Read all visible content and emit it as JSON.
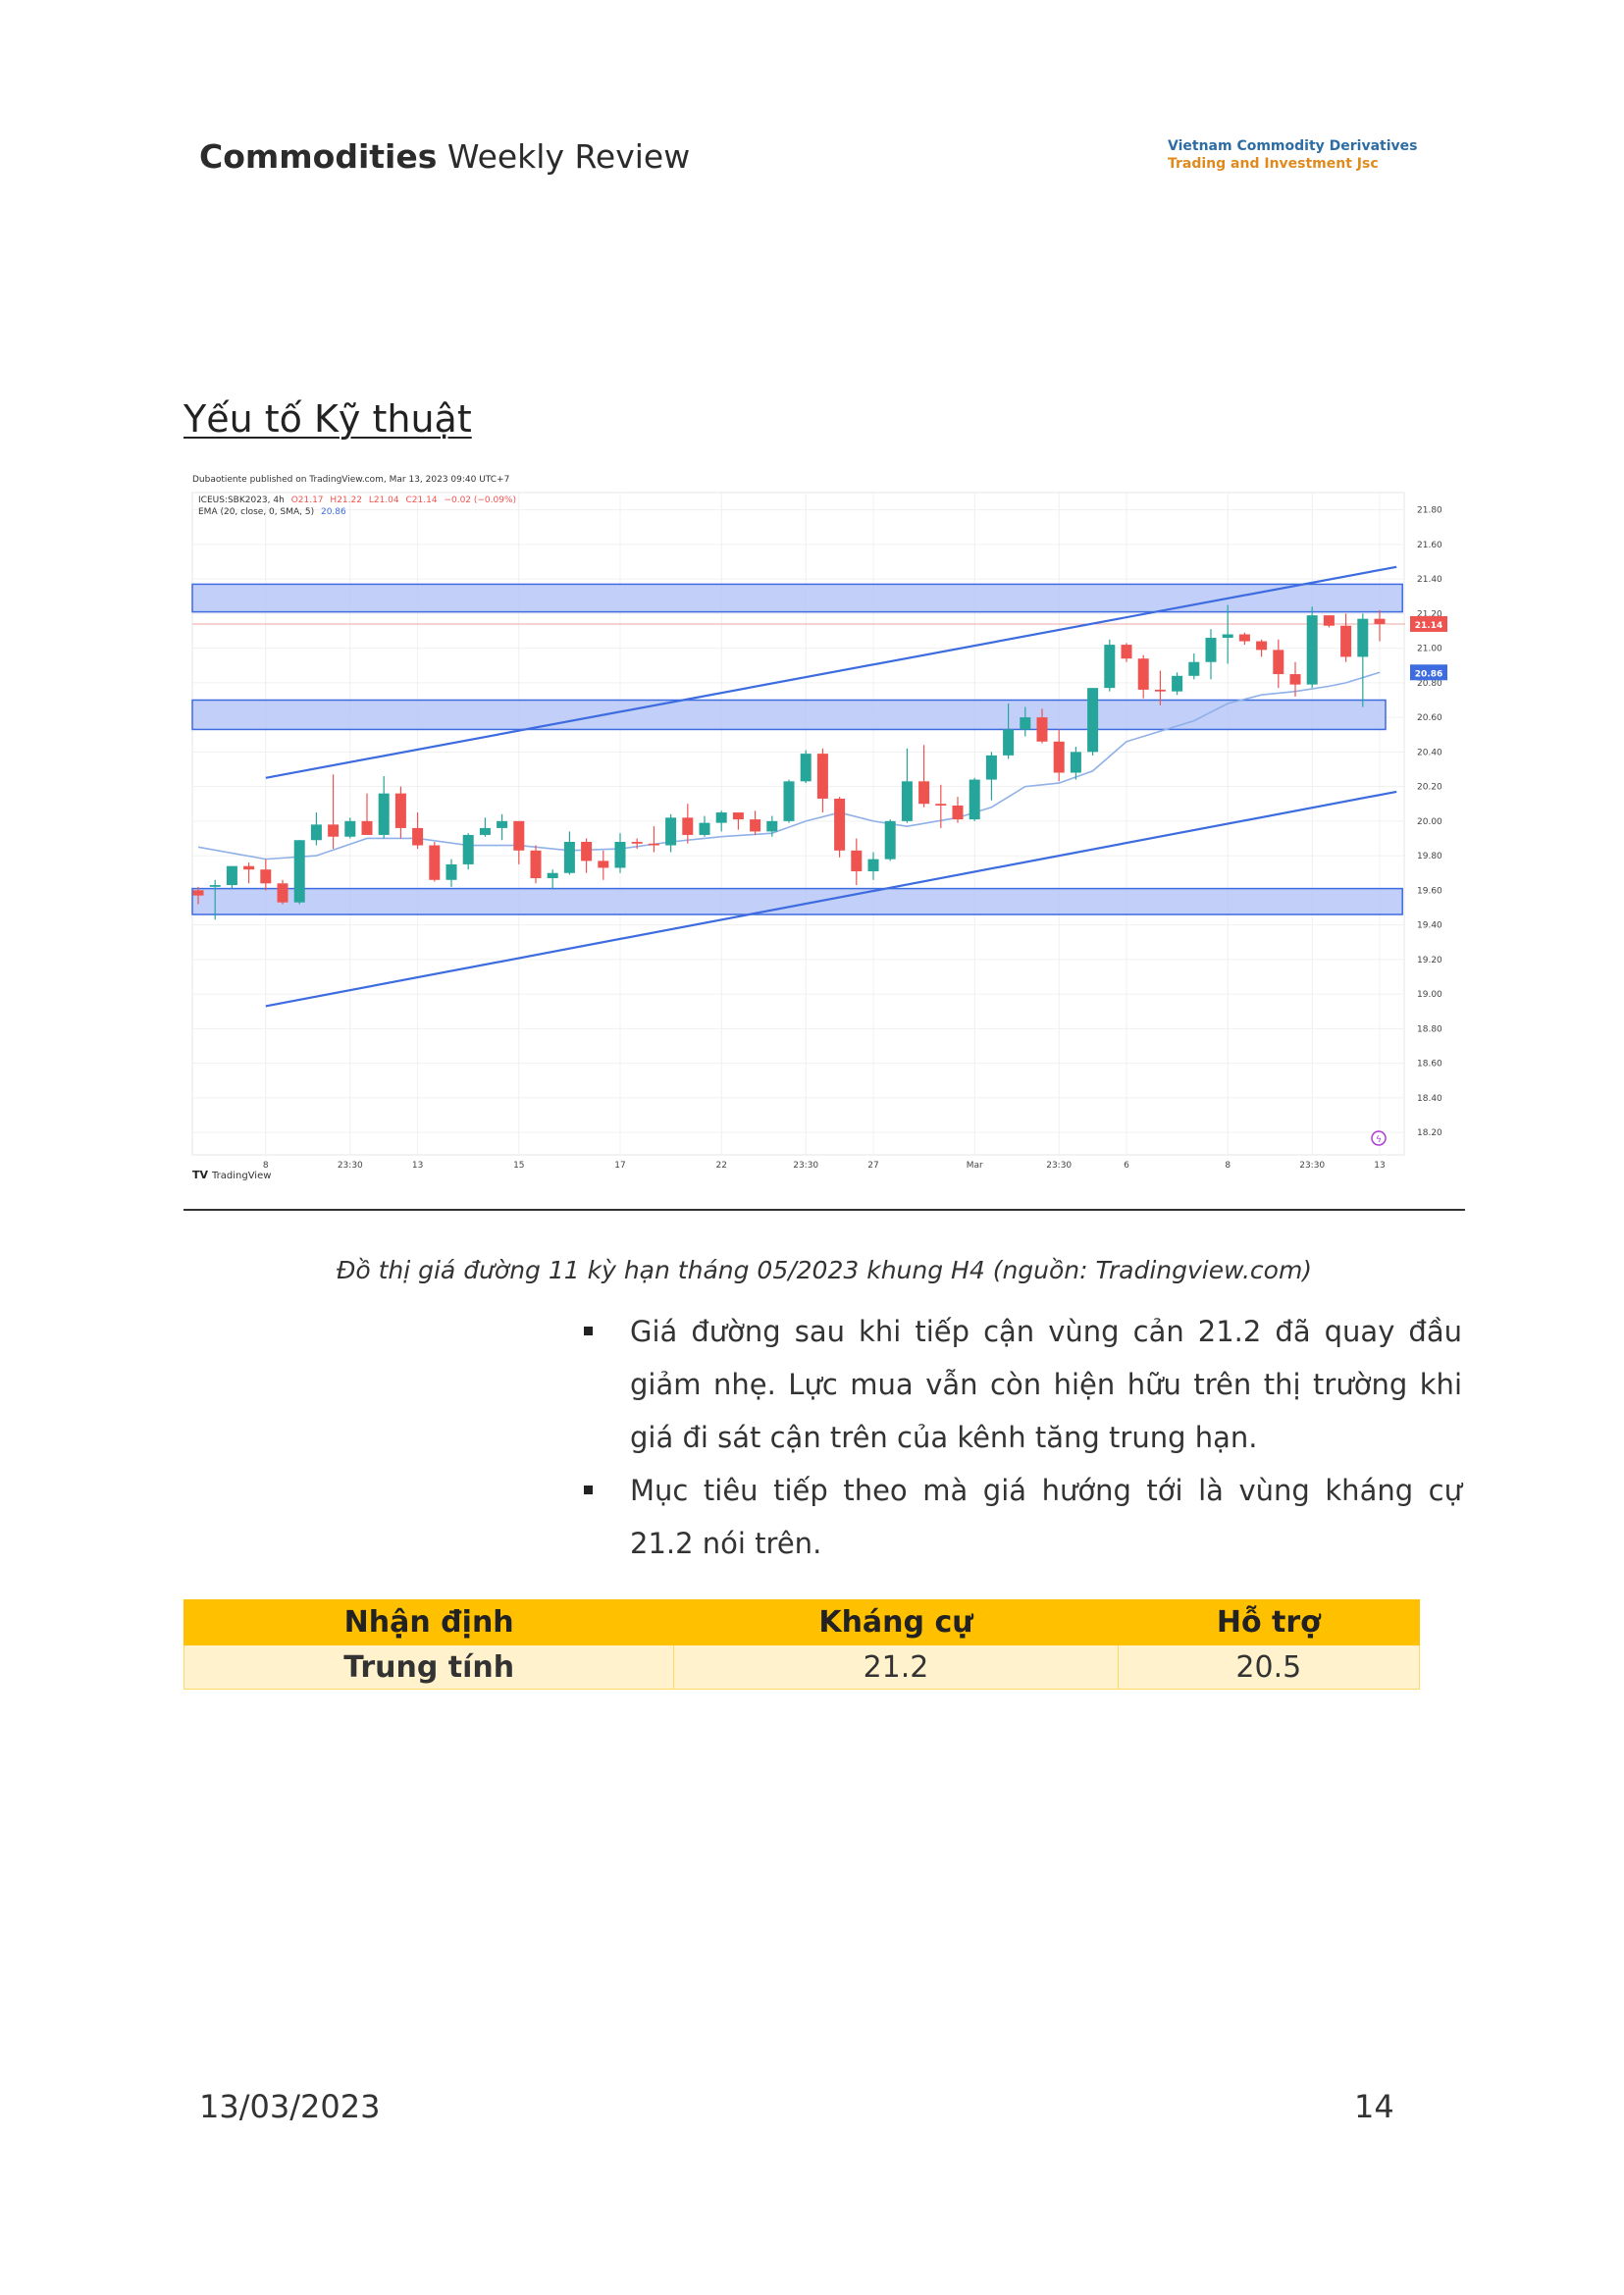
{
  "header": {
    "title_bold": "Commodities",
    "title_rest": " Weekly Review",
    "logo_line1": "Vietnam Commodity Derivatives",
    "logo_line2": "Trading and Investment Jsc"
  },
  "section_title": "Yếu tố Kỹ thuật",
  "chart_data": {
    "type": "candlestick",
    "published": "Dubaotiente published on TradingView.com, Mar 13, 2023 09:40 UTC+7",
    "symbol_line": {
      "symbol": "ICEUS:SBK2023, 4h",
      "o": "O21.17",
      "h": "H21.22",
      "l": "L21.04",
      "c": "C21.14",
      "chg": "−0.02 (−0.09%)"
    },
    "ema_line": {
      "label": "EMA (20, close, 0, SMA, 5)",
      "value": "20.86"
    },
    "y_ticks": [
      "21.80",
      "21.60",
      "21.40",
      "21.20",
      "21.00",
      "20.80",
      "20.60",
      "20.40",
      "20.20",
      "20.00",
      "19.80",
      "19.60",
      "19.40",
      "19.20",
      "19.00",
      "18.80",
      "18.60",
      "18.40",
      "18.20"
    ],
    "y_range": [
      18.07,
      21.9
    ],
    "x_ticks": [
      {
        "label": "8",
        "i": 4
      },
      {
        "label": "23:30",
        "i": 9
      },
      {
        "label": "13",
        "i": 13
      },
      {
        "label": "15",
        "i": 19
      },
      {
        "label": "17",
        "i": 25
      },
      {
        "label": "22",
        "i": 31
      },
      {
        "label": "23:30",
        "i": 36
      },
      {
        "label": "27",
        "i": 40
      },
      {
        "label": "Mar",
        "i": 46
      },
      {
        "label": "23:30",
        "i": 51
      },
      {
        "label": "6",
        "i": 55
      },
      {
        "label": "8",
        "i": 61
      },
      {
        "label": "23:30",
        "i": 66
      },
      {
        "label": "13",
        "i": 70
      }
    ],
    "last_price_label": "21.14",
    "ema_price_label": "20.86",
    "candles": [
      [
        19.6,
        19.62,
        19.52,
        19.57
      ],
      [
        19.62,
        19.66,
        19.43,
        19.63
      ],
      [
        19.63,
        19.74,
        19.61,
        19.74
      ],
      [
        19.74,
        19.76,
        19.64,
        19.72
      ],
      [
        19.72,
        19.78,
        19.6,
        19.64
      ],
      [
        19.64,
        19.66,
        19.52,
        19.53
      ],
      [
        19.53,
        19.89,
        19.52,
        19.89
      ],
      [
        19.89,
        20.05,
        19.86,
        19.98
      ],
      [
        19.98,
        20.27,
        19.84,
        19.91
      ],
      [
        19.91,
        20.02,
        19.9,
        20.0
      ],
      [
        20.0,
        20.16,
        19.95,
        19.92
      ],
      [
        19.92,
        20.26,
        19.9,
        20.16
      ],
      [
        20.16,
        20.2,
        19.9,
        19.96
      ],
      [
        19.96,
        20.05,
        19.84,
        19.86
      ],
      [
        19.86,
        19.88,
        19.65,
        19.66
      ],
      [
        19.66,
        19.78,
        19.62,
        19.75
      ],
      [
        19.75,
        19.93,
        19.72,
        19.92
      ],
      [
        19.92,
        20.02,
        19.91,
        19.96
      ],
      [
        19.96,
        20.04,
        19.89,
        20.0
      ],
      [
        20.0,
        20.0,
        19.75,
        19.83
      ],
      [
        19.83,
        19.86,
        19.64,
        19.67
      ],
      [
        19.67,
        19.72,
        19.61,
        19.7
      ],
      [
        19.7,
        19.94,
        19.69,
        19.88
      ],
      [
        19.88,
        19.9,
        19.7,
        19.77
      ],
      [
        19.77,
        19.83,
        19.66,
        19.73
      ],
      [
        19.73,
        19.93,
        19.7,
        19.88
      ],
      [
        19.88,
        19.9,
        19.84,
        19.87
      ],
      [
        19.87,
        19.97,
        19.82,
        19.86
      ],
      [
        19.86,
        20.04,
        19.82,
        20.02
      ],
      [
        20.02,
        20.1,
        19.87,
        19.92
      ],
      [
        19.92,
        20.03,
        19.91,
        19.99
      ],
      [
        19.99,
        20.06,
        19.94,
        20.05
      ],
      [
        20.05,
        20.05,
        19.95,
        20.01
      ],
      [
        20.01,
        20.06,
        19.92,
        19.94
      ],
      [
        19.94,
        20.03,
        19.91,
        20.0
      ],
      [
        20.0,
        20.24,
        19.99,
        20.23
      ],
      [
        20.23,
        20.41,
        20.22,
        20.39
      ],
      [
        20.39,
        20.42,
        20.05,
        20.13
      ],
      [
        20.13,
        20.14,
        19.79,
        19.83
      ],
      [
        19.83,
        19.9,
        19.63,
        19.71
      ],
      [
        19.71,
        19.82,
        19.66,
        19.78
      ],
      [
        19.78,
        20.01,
        19.77,
        20.0
      ],
      [
        20.0,
        20.42,
        19.99,
        20.23
      ],
      [
        20.23,
        20.44,
        20.08,
        20.1
      ],
      [
        20.1,
        20.21,
        19.96,
        20.09
      ],
      [
        20.09,
        20.14,
        19.99,
        20.01
      ],
      [
        20.01,
        20.25,
        20.0,
        20.24
      ],
      [
        20.24,
        20.4,
        20.12,
        20.38
      ],
      [
        20.38,
        20.68,
        20.36,
        20.53
      ],
      [
        20.53,
        20.66,
        20.49,
        20.6
      ],
      [
        20.6,
        20.65,
        20.45,
        20.46
      ],
      [
        20.46,
        20.53,
        20.23,
        20.28
      ],
      [
        20.28,
        20.43,
        20.24,
        20.4
      ],
      [
        20.4,
        20.77,
        20.38,
        20.77
      ],
      [
        20.77,
        21.05,
        20.75,
        21.02
      ],
      [
        21.02,
        21.03,
        20.92,
        20.94
      ],
      [
        20.94,
        20.96,
        20.71,
        20.76
      ],
      [
        20.76,
        20.87,
        20.67,
        20.75
      ],
      [
        20.75,
        20.86,
        20.73,
        20.84
      ],
      [
        20.84,
        20.97,
        20.82,
        20.92
      ],
      [
        20.92,
        21.11,
        20.82,
        21.06
      ],
      [
        21.06,
        21.25,
        20.91,
        21.08
      ],
      [
        21.08,
        21.09,
        21.02,
        21.04
      ],
      [
        21.04,
        21.05,
        20.95,
        20.99
      ],
      [
        20.99,
        21.05,
        20.77,
        20.85
      ],
      [
        20.85,
        20.92,
        20.72,
        20.79
      ],
      [
        20.79,
        21.24,
        20.77,
        21.19
      ],
      [
        21.19,
        21.19,
        21.12,
        21.13
      ],
      [
        21.13,
        21.2,
        20.92,
        20.95
      ],
      [
        20.95,
        21.2,
        20.66,
        21.17
      ],
      [
        21.17,
        21.22,
        21.04,
        21.14
      ]
    ],
    "ema": [
      [
        0,
        19.85
      ],
      [
        4,
        19.78
      ],
      [
        7,
        19.8
      ],
      [
        10,
        19.9
      ],
      [
        13,
        19.9
      ],
      [
        16,
        19.86
      ],
      [
        19,
        19.86
      ],
      [
        22,
        19.83
      ],
      [
        25,
        19.84
      ],
      [
        28,
        19.88
      ],
      [
        31,
        19.91
      ],
      [
        34,
        19.93
      ],
      [
        36,
        20.0
      ],
      [
        38,
        20.05
      ],
      [
        40,
        20.0
      ],
      [
        42,
        19.97
      ],
      [
        45,
        20.02
      ],
      [
        47,
        20.08
      ],
      [
        49,
        20.2
      ],
      [
        51,
        20.22
      ],
      [
        53,
        20.29
      ],
      [
        55,
        20.46
      ],
      [
        57,
        20.52
      ],
      [
        59,
        20.58
      ],
      [
        61,
        20.68
      ],
      [
        63,
        20.73
      ],
      [
        65,
        20.75
      ],
      [
        67,
        20.78
      ],
      [
        68,
        20.8
      ],
      [
        70,
        20.86
      ]
    ],
    "channel_lines": [
      {
        "from": [
          4,
          20.25
        ],
        "to": [
          71,
          21.47
        ]
      },
      {
        "from": [
          4,
          18.93
        ],
        "to": [
          71,
          20.17
        ]
      }
    ],
    "zones": [
      {
        "top": 21.37,
        "bottom": 21.21,
        "x_end": 71
      },
      {
        "top": 20.7,
        "bottom": 20.53,
        "x_end": 70
      },
      {
        "top": 19.61,
        "bottom": 19.46,
        "x_end": 71
      }
    ],
    "horizontal_line": 21.14,
    "attribution": "TradingView",
    "colors": {
      "up": "#26a69a",
      "down": "#ef5350",
      "channel": "#3d6be0",
      "zone": "#b7c7f7",
      "ema": "#8fb0e8"
    }
  },
  "caption": "Đồ thị giá đường 11 kỳ hạn tháng 05/2023 khung H4 (nguồn: Tradingview.com)",
  "bullets": [
    "Giá đường sau khi tiếp cận vùng cản 21.2 đã quay đầu giảm nhẹ. Lực mua vẫn còn hiện hữu trên thị trường khi giá đi sát cận trên của kênh tăng trung hạn.",
    "Mục tiêu tiếp theo mà giá hướng tới là vùng kháng cự 21.2 nói trên."
  ],
  "table": {
    "headers": [
      "Nhận định",
      "Kháng cự",
      "Hỗ trợ"
    ],
    "row": [
      "Trung tính",
      "21.2",
      "20.5"
    ]
  },
  "footer": {
    "date": "13/03/2023",
    "page": "14"
  }
}
